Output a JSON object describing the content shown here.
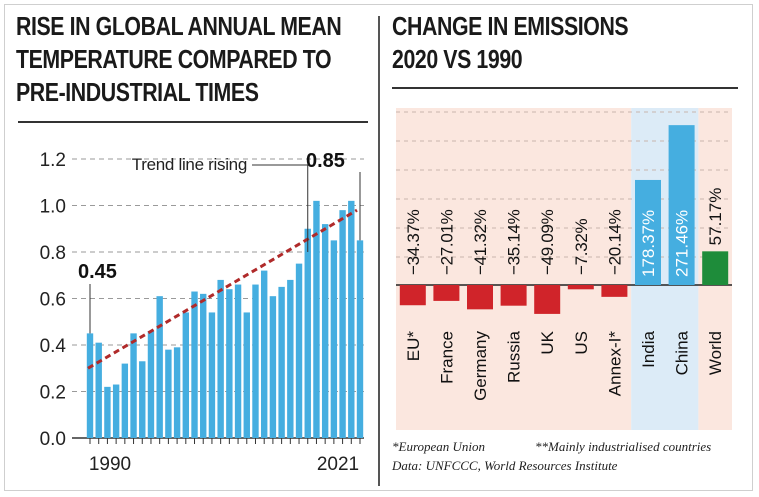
{
  "left_title": [
    "RISE IN GLOBAL ANNUAL MEAN",
    "TEMPERATURE COMPARED TO",
    "PRE-INDUSTRIAL TIMES"
  ],
  "right_title": [
    "CHANGE IN EMISSIONS",
    "2020 VS 1990"
  ],
  "chart_data": [
    {
      "type": "bar",
      "title": "RISE IN GLOBAL ANNUAL MEAN TEMPERATURE COMPARED TO PRE-INDUSTRIAL TIMES",
      "years": [
        1990,
        1991,
        1992,
        1993,
        1994,
        1995,
        1996,
        1997,
        1998,
        1999,
        2000,
        2001,
        2002,
        2003,
        2004,
        2005,
        2006,
        2007,
        2008,
        2009,
        2010,
        2011,
        2012,
        2013,
        2014,
        2015,
        2016,
        2017,
        2018,
        2019,
        2020,
        2021
      ],
      "values": [
        0.45,
        0.41,
        0.22,
        0.23,
        0.32,
        0.45,
        0.33,
        0.46,
        0.61,
        0.38,
        0.39,
        0.54,
        0.63,
        0.62,
        0.54,
        0.68,
        0.64,
        0.66,
        0.54,
        0.66,
        0.72,
        0.61,
        0.65,
        0.68,
        0.75,
        0.9,
        1.02,
        0.92,
        0.85,
        0.98,
        1.02,
        0.85
      ],
      "ylim": [
        0,
        1.2
      ],
      "yticks": [
        "0.0",
        "0.2",
        "0.4",
        "0.6",
        "0.8",
        "1.0",
        "1.2"
      ],
      "xtick_labels": [
        "1990",
        "2021"
      ],
      "trend_label": "Trend line rising",
      "start_label": "0.45",
      "end_label": "0.85",
      "bar_color": "#45aee0",
      "trend_color": "#b02a2a",
      "grid": "dashed horizontal"
    },
    {
      "type": "bar",
      "title": "CHANGE IN EMISSIONS 2020 VS 1990",
      "categories": [
        "EU*",
        "France",
        "Germany",
        "Russia",
        "UK",
        "US",
        "Annex-I*",
        "India",
        "China",
        "World"
      ],
      "values": [
        -34.37,
        -27.01,
        -41.32,
        -35.14,
        -49.09,
        -7.32,
        -20.14,
        178.37,
        271.46,
        57.17
      ],
      "value_labels": [
        "−34.37%",
        "−27.01%",
        "−41.32%",
        "−35.14%",
        "−49.09%",
        "−7.32%",
        "−20.14%",
        "178.37%",
        "271.46%",
        "57.17%"
      ],
      "colors": {
        "negative": "#d0242a",
        "positive": "#45aee0",
        "world": "#1e8c3a"
      },
      "ylim": [
        -70,
        290
      ]
    }
  ],
  "footnotes": {
    "eu": "*European Union",
    "annex": "**Mainly industrialised countries",
    "source": "Data: UNFCCC, World Resources Institute"
  }
}
